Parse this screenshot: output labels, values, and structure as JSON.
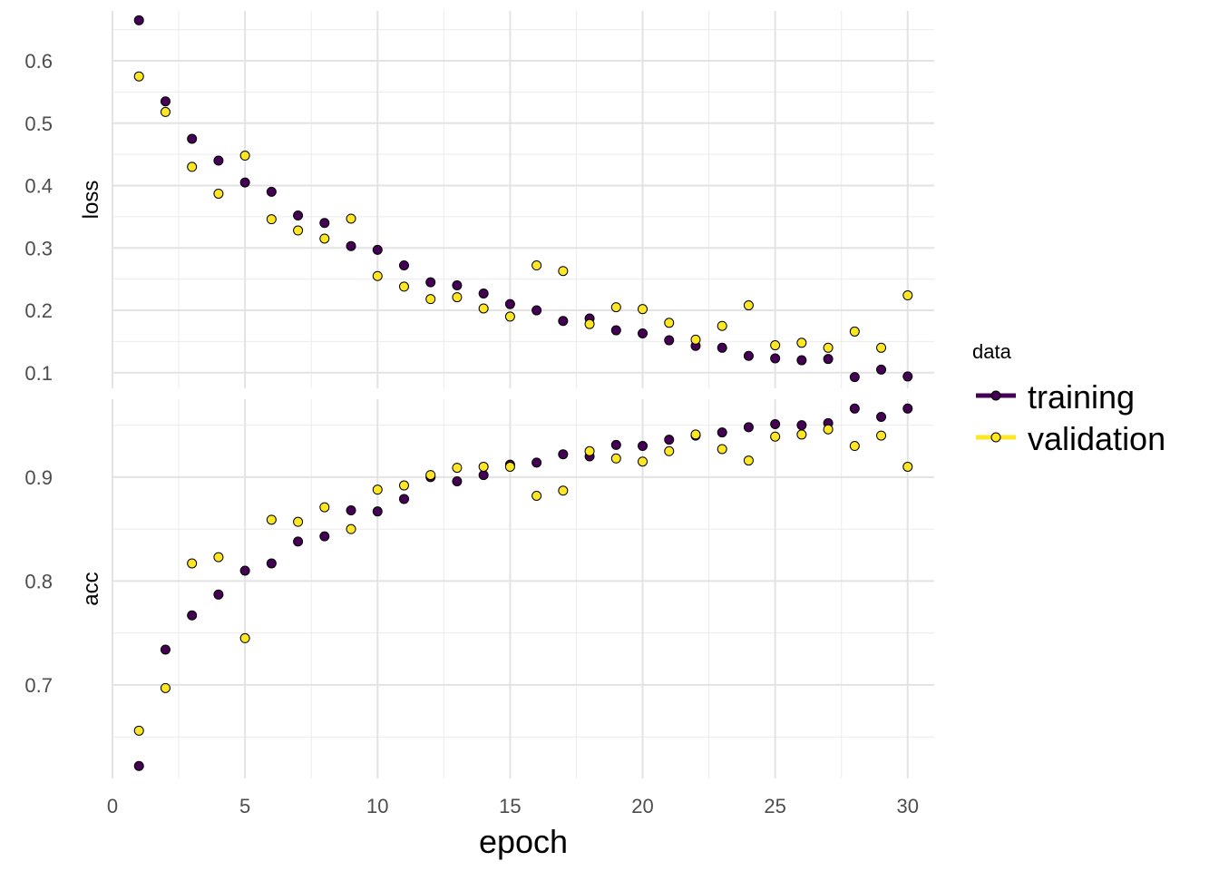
{
  "chart_data": {
    "type": "scatter",
    "xlabel": "epoch",
    "x_ticks": [
      0,
      5,
      10,
      15,
      20,
      25,
      30
    ],
    "xlim": [
      0,
      31
    ],
    "grid": true,
    "legend": {
      "title": "data",
      "placement": "right",
      "entries": [
        "training",
        "validation"
      ]
    },
    "colors": {
      "training": "#440154",
      "validation": "#FDE725"
    },
    "panels": [
      {
        "name": "loss",
        "ylabel": "loss",
        "ylim": [
          0.075,
          0.68
        ],
        "y_ticks": [
          "0.1",
          "0.2",
          "0.3",
          "0.4",
          "0.5",
          "0.6"
        ],
        "y_tick_values": [
          0.1,
          0.2,
          0.3,
          0.4,
          0.5,
          0.6
        ],
        "series": [
          {
            "name": "training",
            "x": [
              1,
              2,
              3,
              4,
              5,
              6,
              7,
              8,
              9,
              10,
              11,
              12,
              13,
              14,
              15,
              16,
              17,
              18,
              19,
              20,
              21,
              22,
              23,
              24,
              25,
              26,
              27,
              28,
              29,
              30
            ],
            "values": [
              0.665,
              0.535,
              0.475,
              0.44,
              0.405,
              0.39,
              0.352,
              0.34,
              0.303,
              0.297,
              0.272,
              0.245,
              0.24,
              0.227,
              0.21,
              0.2,
              0.183,
              0.187,
              0.168,
              0.163,
              0.152,
              0.143,
              0.14,
              0.127,
              0.123,
              0.12,
              0.122,
              0.093,
              0.105,
              0.094
            ]
          },
          {
            "name": "validation",
            "x": [
              1,
              2,
              3,
              4,
              5,
              6,
              7,
              8,
              9,
              10,
              11,
              12,
              13,
              14,
              15,
              16,
              17,
              18,
              19,
              20,
              21,
              22,
              23,
              24,
              25,
              26,
              27,
              28,
              29,
              30
            ],
            "values": [
              0.575,
              0.518,
              0.43,
              0.387,
              0.448,
              0.346,
              0.328,
              0.315,
              0.347,
              0.255,
              0.238,
              0.218,
              0.221,
              0.203,
              0.19,
              0.272,
              0.263,
              0.178,
              0.205,
              0.202,
              0.18,
              0.153,
              0.175,
              0.208,
              0.144,
              0.148,
              0.14,
              0.166,
              0.14,
              0.224
            ]
          }
        ]
      },
      {
        "name": "acc",
        "ylabel": "acc",
        "ylim": [
          0.61,
          0.975
        ],
        "y_ticks": [
          "0.7",
          "0.8",
          "0.9"
        ],
        "y_tick_values": [
          0.7,
          0.8,
          0.9
        ],
        "series": [
          {
            "name": "training",
            "x": [
              1,
              2,
              3,
              4,
              5,
              6,
              7,
              8,
              9,
              10,
              11,
              12,
              13,
              14,
              15,
              16,
              17,
              18,
              19,
              20,
              21,
              22,
              23,
              24,
              25,
              26,
              27,
              28,
              29,
              30
            ],
            "values": [
              0.622,
              0.734,
              0.767,
              0.787,
              0.81,
              0.817,
              0.838,
              0.843,
              0.868,
              0.867,
              0.879,
              0.9,
              0.896,
              0.902,
              0.912,
              0.914,
              0.922,
              0.92,
              0.931,
              0.93,
              0.936,
              0.94,
              0.943,
              0.948,
              0.951,
              0.95,
              0.952,
              0.966,
              0.958,
              0.966
            ]
          },
          {
            "name": "validation",
            "x": [
              1,
              2,
              3,
              4,
              5,
              6,
              7,
              8,
              9,
              10,
              11,
              12,
              13,
              14,
              15,
              16,
              17,
              18,
              19,
              20,
              21,
              22,
              23,
              24,
              25,
              26,
              27,
              28,
              29,
              30
            ],
            "values": [
              0.656,
              0.697,
              0.817,
              0.823,
              0.745,
              0.859,
              0.857,
              0.871,
              0.85,
              0.888,
              0.892,
              0.902,
              0.909,
              0.91,
              0.91,
              0.882,
              0.887,
              0.925,
              0.918,
              0.915,
              0.925,
              0.941,
              0.927,
              0.916,
              0.939,
              0.941,
              0.946,
              0.93,
              0.94,
              0.91
            ]
          }
        ]
      }
    ]
  }
}
